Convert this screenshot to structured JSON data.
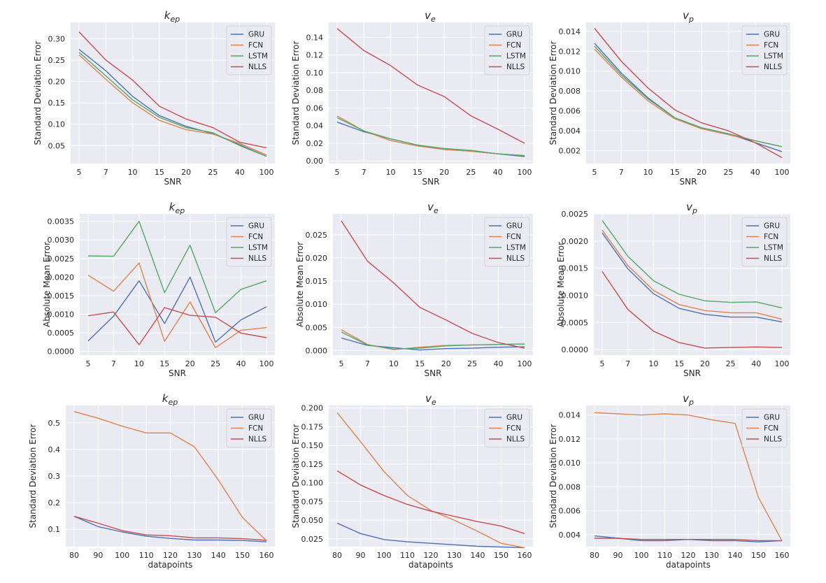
{
  "chart_data": [
    {
      "type": "line",
      "title": "k_ep",
      "title_base": "k",
      "title_sub": "ep",
      "xlabel": "SNR",
      "ylabel": "Standard Deviation Error",
      "categories": [
        "5",
        "7",
        "10",
        "15",
        "20",
        "25",
        "40",
        "100"
      ],
      "ylim": [
        0.008,
        0.338
      ],
      "yticks": [
        0.05,
        0.1,
        0.15,
        0.2,
        0.25,
        0.3
      ],
      "ytick_labels": [
        "0.05",
        "0.10",
        "0.15",
        "0.20",
        "0.25",
        "0.30"
      ],
      "legend_loc": "upper right",
      "series": [
        {
          "name": "GRU",
          "color": "#4c72b0",
          "values": [
            0.275,
            0.225,
            0.165,
            0.12,
            0.095,
            0.078,
            0.052,
            0.025
          ]
        },
        {
          "name": "FCN",
          "color": "#dd8452",
          "values": [
            0.262,
            0.205,
            0.15,
            0.109,
            0.087,
            0.077,
            0.055,
            0.028
          ]
        },
        {
          "name": "LSTM",
          "color": "#55a868",
          "values": [
            0.268,
            0.213,
            0.157,
            0.116,
            0.092,
            0.08,
            0.05,
            0.025
          ]
        },
        {
          "name": "NLLS",
          "color": "#c44e52",
          "values": [
            0.316,
            0.25,
            0.203,
            0.142,
            0.112,
            0.092,
            0.058,
            0.045
          ]
        }
      ]
    },
    {
      "type": "line",
      "title": "v_e",
      "title_base": "v",
      "title_sub": "e",
      "xlabel": "SNR",
      "ylabel": "Standard Deviation Error",
      "categories": [
        "5",
        "7",
        "10",
        "15",
        "20",
        "25",
        "40",
        "100"
      ],
      "ylim": [
        -0.003,
        0.157
      ],
      "yticks": [
        0.0,
        0.02,
        0.04,
        0.06,
        0.08,
        0.1,
        0.12,
        0.14
      ],
      "ytick_labels": [
        "0.00",
        "0.02",
        "0.04",
        "0.06",
        "0.08",
        "0.10",
        "0.12",
        "0.14"
      ],
      "legend_loc": "upper right",
      "series": [
        {
          "name": "GRU",
          "color": "#4c72b0",
          "values": [
            0.044,
            0.033,
            0.025,
            0.018,
            0.013,
            0.011,
            0.008,
            0.005
          ]
        },
        {
          "name": "FCN",
          "color": "#dd8452",
          "values": [
            0.051,
            0.034,
            0.023,
            0.017,
            0.013,
            0.011,
            0.008,
            0.006
          ]
        },
        {
          "name": "LSTM",
          "color": "#55a868",
          "values": [
            0.049,
            0.034,
            0.025,
            0.018,
            0.014,
            0.012,
            0.008,
            0.006
          ]
        },
        {
          "name": "NLLS",
          "color": "#c44e52",
          "values": [
            0.15,
            0.125,
            0.108,
            0.086,
            0.073,
            0.051,
            0.036,
            0.02
          ]
        }
      ]
    },
    {
      "type": "line",
      "title": "v_p",
      "title_base": "v",
      "title_sub": "p",
      "xlabel": "SNR",
      "ylabel": "Standard Deviation Error",
      "categories": [
        "5",
        "7",
        "10",
        "15",
        "20",
        "25",
        "40",
        "100"
      ],
      "ylim": [
        0.0007,
        0.0149
      ],
      "yticks": [
        0.002,
        0.004,
        0.006,
        0.008,
        0.01,
        0.012,
        0.014
      ],
      "ytick_labels": [
        "0.002",
        "0.004",
        "0.006",
        "0.008",
        "0.010",
        "0.012",
        "0.014"
      ],
      "legend_loc": "upper right",
      "series": [
        {
          "name": "GRU",
          "color": "#4c72b0",
          "values": [
            0.0128,
            0.0098,
            0.0073,
            0.0053,
            0.0043,
            0.0037,
            0.0028,
            0.0019
          ]
        },
        {
          "name": "FCN",
          "color": "#dd8452",
          "values": [
            0.0122,
            0.0094,
            0.007,
            0.0052,
            0.0042,
            0.0036,
            0.003,
            0.0024
          ]
        },
        {
          "name": "LSTM",
          "color": "#55a868",
          "values": [
            0.0125,
            0.0096,
            0.0072,
            0.0053,
            0.0043,
            0.0037,
            0.003,
            0.0024
          ]
        },
        {
          "name": "NLLS",
          "color": "#c44e52",
          "values": [
            0.0143,
            0.011,
            0.0083,
            0.0061,
            0.0048,
            0.004,
            0.0028,
            0.0013
          ]
        }
      ]
    },
    {
      "type": "line",
      "title": "k_ep",
      "title_base": "k",
      "title_sub": "ep",
      "xlabel": "SNR",
      "ylabel": "Absolute Mean Error",
      "categories": [
        "5",
        "7",
        "10",
        "15",
        "20",
        "25",
        "40",
        "100"
      ],
      "ylim": [
        -0.0001,
        0.0037
      ],
      "yticks": [
        0.0,
        0.0005,
        0.001,
        0.0015,
        0.002,
        0.0025,
        0.003,
        0.0035
      ],
      "ytick_labels": [
        "0.0000",
        "0.0005",
        "0.0010",
        "0.0015",
        "0.0020",
        "0.0025",
        "0.0030",
        "0.0035"
      ],
      "legend_loc": "upper right",
      "series": [
        {
          "name": "GRU",
          "color": "#4c72b0",
          "values": [
            0.00028,
            0.00095,
            0.0019,
            0.00075,
            0.002,
            0.00025,
            0.00085,
            0.0012
          ]
        },
        {
          "name": "FCN",
          "color": "#dd8452",
          "values": [
            0.00205,
            0.00162,
            0.00238,
            0.00027,
            0.00133,
            0.0001,
            0.00057,
            0.00064
          ]
        },
        {
          "name": "LSTM",
          "color": "#55a868",
          "values": [
            0.00257,
            0.00256,
            0.0035,
            0.00158,
            0.00286,
            0.00104,
            0.00167,
            0.0019
          ]
        },
        {
          "name": "NLLS",
          "color": "#c44e52",
          "values": [
            0.00096,
            0.00106,
            0.00018,
            0.00118,
            0.00097,
            0.00092,
            0.00049,
            0.00037
          ]
        }
      ]
    },
    {
      "type": "line",
      "title": "v_e",
      "title_base": "v",
      "title_sub": "e",
      "xlabel": "SNR",
      "ylabel": "Absolute Mean Error",
      "categories": [
        "5",
        "7",
        "10",
        "15",
        "20",
        "25",
        "40",
        "100"
      ],
      "ylim": [
        -0.001,
        0.0295
      ],
      "yticks": [
        0.0,
        0.005,
        0.01,
        0.015,
        0.02,
        0.025
      ],
      "ytick_labels": [
        "0.000",
        "0.005",
        "0.010",
        "0.015",
        "0.020",
        "0.025"
      ],
      "legend_loc": "upper right",
      "series": [
        {
          "name": "GRU",
          "color": "#4c72b0",
          "values": [
            0.0027,
            0.0011,
            0.0006,
            0.0001,
            0.0004,
            0.0005,
            0.0007,
            0.0008
          ]
        },
        {
          "name": "FCN",
          "color": "#dd8452",
          "values": [
            0.0045,
            0.0013,
            0.0002,
            0.0007,
            0.0011,
            0.0012,
            0.0013,
            0.0014
          ]
        },
        {
          "name": "LSTM",
          "color": "#55a868",
          "values": [
            0.004,
            0.0012,
            0.0003,
            0.0005,
            0.001,
            0.0012,
            0.0013,
            0.0014
          ]
        },
        {
          "name": "NLLS",
          "color": "#c44e52",
          "values": [
            0.028,
            0.0193,
            0.0146,
            0.0093,
            0.0066,
            0.0037,
            0.0017,
            0.0005
          ]
        }
      ]
    },
    {
      "type": "line",
      "title": "v_p",
      "title_base": "v",
      "title_sub": "p",
      "xlabel": "SNR",
      "ylabel": "Absolute Mean Error",
      "categories": [
        "5",
        "7",
        "10",
        "15",
        "20",
        "25",
        "40",
        "100"
      ],
      "ylim": [
        -0.0001,
        0.0025
      ],
      "yticks": [
        0.0,
        0.0005,
        0.001,
        0.0015,
        0.002,
        0.0025
      ],
      "ytick_labels": [
        "0.0000",
        "0.0005",
        "0.0010",
        "0.0015",
        "0.0020",
        "0.0025"
      ],
      "legend_loc": "upper right",
      "series": [
        {
          "name": "GRU",
          "color": "#4c72b0",
          "values": [
            0.00215,
            0.00149,
            0.00103,
            0.00076,
            0.00065,
            0.0006,
            0.0006,
            0.00051
          ]
        },
        {
          "name": "FCN",
          "color": "#dd8452",
          "values": [
            0.0022,
            0.00155,
            0.00109,
            0.00083,
            0.00072,
            0.00068,
            0.00068,
            0.00056
          ]
        },
        {
          "name": "LSTM",
          "color": "#55a868",
          "values": [
            0.00238,
            0.00172,
            0.00127,
            0.00102,
            0.0009,
            0.00087,
            0.00088,
            0.00077
          ]
        },
        {
          "name": "NLLS",
          "color": "#c44e52",
          "values": [
            0.00144,
            0.00074,
            0.00034,
            0.00013,
            3e-05,
            4e-05,
            5e-05,
            4e-05
          ]
        }
      ]
    },
    {
      "type": "line",
      "title": "k_ep",
      "title_base": "k",
      "title_sub": "ep",
      "xlabel": "datapoints",
      "ylabel": "Standard Deviation Error",
      "categories": [
        "80",
        "90",
        "100",
        "110",
        "120",
        "130",
        "140",
        "150",
        "160"
      ],
      "ylim": [
        0.035,
        0.565
      ],
      "yticks": [
        0.1,
        0.2,
        0.3,
        0.4,
        0.5
      ],
      "ytick_labels": [
        "0.1",
        "0.2",
        "0.3",
        "0.4",
        "0.5"
      ],
      "legend_loc": "upper right",
      "series": [
        {
          "name": "GRU",
          "color": "#4c72b0",
          "values": [
            0.149,
            0.11,
            0.09,
            0.074,
            0.066,
            0.06,
            0.06,
            0.058,
            0.053
          ]
        },
        {
          "name": "FCN",
          "color": "#dd8452",
          "values": [
            0.542,
            0.517,
            0.487,
            0.462,
            0.462,
            0.41,
            0.285,
            0.145,
            0.057
          ]
        },
        {
          "name": "NLLS",
          "color": "#c44e52",
          "values": [
            0.149,
            0.123,
            0.095,
            0.079,
            0.076,
            0.068,
            0.068,
            0.065,
            0.059
          ]
        }
      ]
    },
    {
      "type": "line",
      "title": "v_e",
      "title_base": "v",
      "title_sub": "e",
      "xlabel": "datapoints",
      "ylabel": "Standard Deviation Error",
      "categories": [
        "80",
        "90",
        "100",
        "110",
        "120",
        "130",
        "140",
        "150",
        "160"
      ],
      "ylim": [
        0.0145,
        0.2035
      ],
      "yticks": [
        0.025,
        0.05,
        0.075,
        0.1,
        0.125,
        0.15,
        0.175,
        0.2
      ],
      "ytick_labels": [
        "0.025",
        "0.050",
        "0.075",
        "0.100",
        "0.125",
        "0.150",
        "0.175",
        "0.200"
      ],
      "legend_loc": "upper right",
      "series": [
        {
          "name": "GRU",
          "color": "#4c72b0",
          "values": [
            0.046,
            0.032,
            0.024,
            0.021,
            0.019,
            0.017,
            0.015,
            0.014,
            0.013
          ]
        },
        {
          "name": "FCN",
          "color": "#dd8452",
          "values": [
            0.194,
            0.155,
            0.115,
            0.083,
            0.063,
            0.05,
            0.035,
            0.019,
            0.013
          ]
        },
        {
          "name": "NLLS",
          "color": "#c44e52",
          "values": [
            0.116,
            0.097,
            0.083,
            0.071,
            0.062,
            0.055,
            0.048,
            0.042,
            0.032
          ]
        }
      ]
    },
    {
      "type": "line",
      "title": "v_p",
      "title_base": "v",
      "title_sub": "p",
      "xlabel": "datapoints",
      "ylabel": "Standard Deviation Error",
      "categories": [
        "80",
        "90",
        "100",
        "110",
        "120",
        "130",
        "140",
        "150",
        "160"
      ],
      "ylim": [
        0.003,
        0.0148
      ],
      "yticks": [
        0.004,
        0.006,
        0.008,
        0.01,
        0.012,
        0.014
      ],
      "ytick_labels": [
        "0.004",
        "0.006",
        "0.008",
        "0.010",
        "0.012",
        "0.014"
      ],
      "legend_loc": "upper right",
      "series": [
        {
          "name": "GRU",
          "color": "#4c72b0",
          "values": [
            0.0039,
            0.0037,
            0.0035,
            0.0035,
            0.0036,
            0.0035,
            0.0035,
            0.0034,
            0.0035
          ]
        },
        {
          "name": "FCN",
          "color": "#dd8452",
          "values": [
            0.0142,
            0.0141,
            0.014,
            0.0141,
            0.014,
            0.0136,
            0.0133,
            0.0071,
            0.0035
          ]
        },
        {
          "name": "NLLS",
          "color": "#c44e52",
          "values": [
            0.0037,
            0.0037,
            0.0036,
            0.0036,
            0.0036,
            0.0036,
            0.0036,
            0.0035,
            0.0035
          ]
        }
      ]
    }
  ]
}
